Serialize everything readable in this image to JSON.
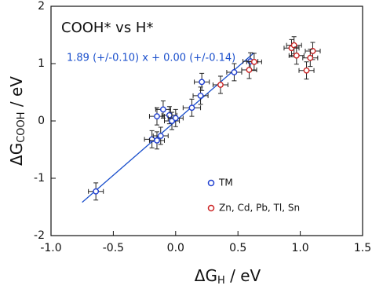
{
  "chart_data": {
    "type": "scatter",
    "title": "COOH* vs H*",
    "annotation": "1.89 (+/-0.10) x + 0.00 (+/-0.14)",
    "xlabel": {
      "main": "ΔG",
      "sub": "H",
      "unit": " / eV"
    },
    "ylabel": {
      "main": "ΔG",
      "sub": "COOH",
      "unit": " / eV"
    },
    "xlim": [
      -1.0,
      1.5
    ],
    "ylim": [
      -2,
      2
    ],
    "xticks": [
      {
        "value": -1.0,
        "label": "-1.0"
      },
      -0.5,
      {
        "value": 0.0,
        "label": "0.0"
      },
      0.5,
      {
        "value": 1.0,
        "label": "1.0"
      },
      1.5
    ],
    "yticks": [
      -2,
      -1,
      0,
      1,
      2
    ],
    "fit_line": {
      "color": "#1a4fcc",
      "x": [
        -0.75,
        0.63
      ],
      "y": [
        -1.42,
        1.19
      ]
    },
    "series": [
      {
        "name": "TM",
        "color": "#1f3fd0",
        "x": [
          -0.64,
          -0.19,
          -0.15,
          -0.12,
          -0.15,
          -0.1,
          -0.05,
          -0.03,
          0.0,
          0.13,
          0.2,
          0.21,
          0.47,
          0.6
        ],
        "y": [
          -1.23,
          -0.32,
          -0.34,
          -0.26,
          0.08,
          0.2,
          0.1,
          0.0,
          0.05,
          0.23,
          0.44,
          0.68,
          0.85,
          1.04
        ],
        "x_err": [
          0.06,
          0.06,
          0.06,
          0.06,
          0.06,
          0.06,
          0.06,
          0.06,
          0.06,
          0.07,
          0.06,
          0.06,
          0.06,
          0.06
        ],
        "y_err": [
          0.15,
          0.15,
          0.15,
          0.15,
          0.15,
          0.15,
          0.15,
          0.15,
          0.15,
          0.15,
          0.15,
          0.15,
          0.15,
          0.15
        ]
      },
      {
        "name": "Zn, Cd, Pb, Tl, Sn",
        "color": "#cc2222",
        "x": [
          0.36,
          0.59,
          0.63,
          0.93,
          0.95,
          0.97,
          1.1,
          1.05,
          1.08
        ],
        "y": [
          0.63,
          0.89,
          1.03,
          1.27,
          1.32,
          1.14,
          1.22,
          0.88,
          1.1
        ],
        "x_err": [
          0.06,
          0.06,
          0.06,
          0.06,
          0.06,
          0.06,
          0.06,
          0.06,
          0.06
        ],
        "y_err": [
          0.15,
          0.15,
          0.15,
          0.15,
          0.15,
          0.15,
          0.15,
          0.15,
          0.15
        ]
      }
    ]
  }
}
